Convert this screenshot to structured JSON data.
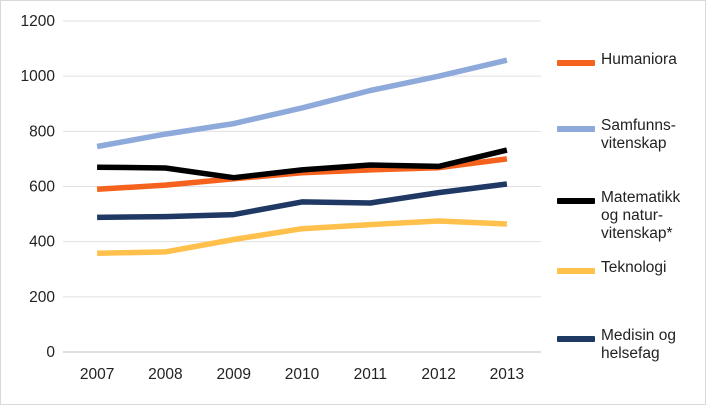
{
  "chart_data": {
    "type": "line",
    "categories": [
      "2007",
      "2008",
      "2009",
      "2010",
      "2011",
      "2012",
      "2013"
    ],
    "ylim": [
      0,
      1200
    ],
    "yticks": [
      0,
      200,
      400,
      600,
      800,
      1000,
      1200
    ],
    "grid": true,
    "legend_position": "right",
    "series": [
      {
        "name": "Humaniora",
        "color": "#f4621e",
        "values": [
          590,
          605,
          628,
          650,
          660,
          668,
          700
        ]
      },
      {
        "name": "Samfunns-\nvitenskap",
        "color": "#8eaadb",
        "values": [
          745,
          790,
          828,
          885,
          948,
          1000,
          1058
        ]
      },
      {
        "name": "Matematikk\nog natur-\nvitenskap*",
        "color": "#000000",
        "values": [
          670,
          667,
          632,
          660,
          678,
          673,
          732
        ]
      },
      {
        "name": "Teknologi",
        "color": "#ffc04c",
        "values": [
          358,
          363,
          408,
          447,
          462,
          475,
          464
        ]
      },
      {
        "name": "Medisin og\nhelsefag",
        "color": "#1f3864",
        "values": [
          488,
          491,
          498,
          544,
          540,
          578,
          609
        ]
      }
    ]
  }
}
